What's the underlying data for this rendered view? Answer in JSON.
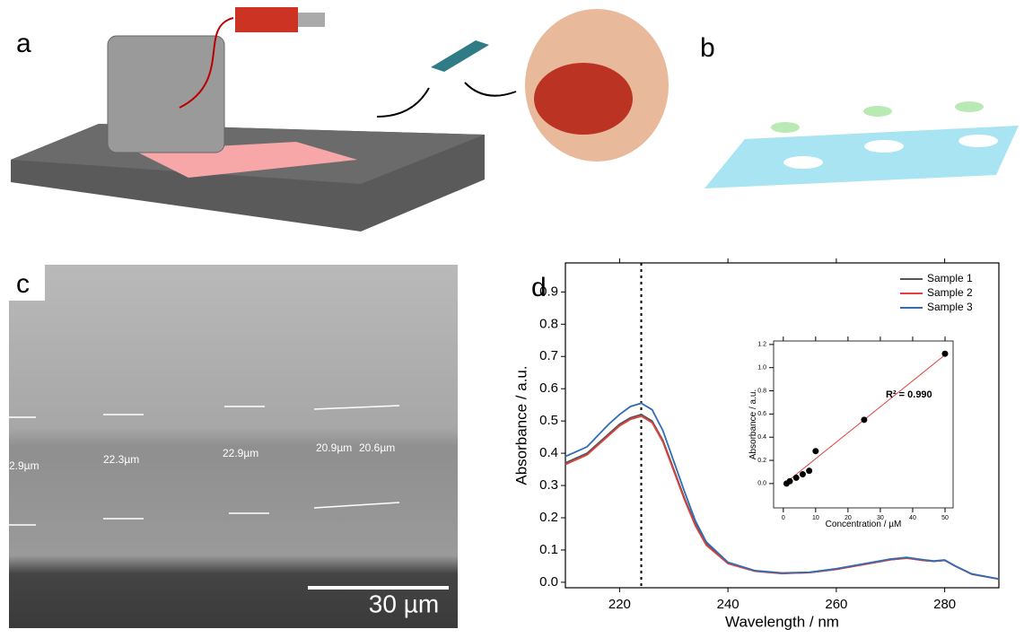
{
  "panels": {
    "a": {
      "label": "a"
    },
    "b": {
      "label": "b"
    },
    "c": {
      "label": "c",
      "scale_bar": "30 µm",
      "measurements": [
        "2.9µm",
        "22.3µm",
        "22.9µm",
        "20.9µm",
        "20.6µm"
      ]
    },
    "d": {
      "label": "d"
    }
  },
  "chart_data": [
    {
      "type": "line",
      "x_label": "Wavelength / nm",
      "y_label": "Absorbance / a.u.",
      "x": [
        210,
        214,
        218,
        220,
        222,
        224,
        226,
        228,
        230,
        232,
        234,
        236,
        240,
        245,
        250,
        255,
        260,
        265,
        270,
        273,
        276,
        278,
        280,
        282,
        285,
        290
      ],
      "series": [
        {
          "name": "Sample 1",
          "color": "#555555",
          "values": [
            0.37,
            0.4,
            0.46,
            0.49,
            0.51,
            0.52,
            0.5,
            0.44,
            0.35,
            0.26,
            0.18,
            0.12,
            0.06,
            0.035,
            0.028,
            0.03,
            0.04,
            0.055,
            0.07,
            0.075,
            0.068,
            0.065,
            0.068,
            0.05,
            0.025,
            0.01
          ]
        },
        {
          "name": "Sample 2",
          "color": "#e0413c",
          "values": [
            0.365,
            0.395,
            0.455,
            0.485,
            0.505,
            0.515,
            0.495,
            0.435,
            0.345,
            0.255,
            0.175,
            0.115,
            0.058,
            0.034,
            0.027,
            0.03,
            0.04,
            0.055,
            0.07,
            0.075,
            0.068,
            0.065,
            0.068,
            0.05,
            0.025,
            0.01
          ]
        },
        {
          "name": "Sample 3",
          "color": "#2f6db5",
          "values": [
            0.39,
            0.42,
            0.49,
            0.52,
            0.545,
            0.555,
            0.535,
            0.47,
            0.375,
            0.28,
            0.19,
            0.125,
            0.062,
            0.036,
            0.029,
            0.031,
            0.042,
            0.057,
            0.072,
            0.077,
            0.07,
            0.066,
            0.069,
            0.05,
            0.026,
            0.01
          ]
        }
      ],
      "xlim": [
        210,
        290
      ],
      "xticks": [
        220,
        240,
        260,
        280
      ],
      "ylim": [
        -0.017,
        0.99
      ],
      "yticks": [
        {
          "value": 0,
          "label": "0.0"
        },
        0.1,
        0.2,
        0.3,
        0.4,
        0.5,
        0.6,
        0.7,
        0.8,
        0.9
      ],
      "vline": 224,
      "legend": "top-right"
    },
    {
      "type": "scatter",
      "x_label": "Concentration / µM",
      "y_label": "Absorbance / a.u.",
      "annotation": "R² = 0.990",
      "x": [
        1,
        2,
        4,
        6,
        8,
        10,
        25,
        50
      ],
      "values": [
        0.0,
        0.02,
        0.05,
        0.08,
        0.11,
        0.28,
        0.55,
        1.12
      ],
      "color": "#000000",
      "fit_line": {
        "x": [
          0,
          50
        ],
        "y": [
          -0.01,
          1.11
        ],
        "color": "#e0413c"
      },
      "xlim": [
        -3,
        52.5
      ],
      "xticks": [
        0,
        10,
        20,
        30,
        40,
        50
      ],
      "ylim": [
        -0.21,
        1.23
      ],
      "yticks": [
        {
          "value": 0,
          "label": "0.0"
        },
        0.2,
        0.4,
        0.6,
        0.8,
        {
          "value": 1,
          "label": "1.0"
        },
        1.2
      ]
    }
  ]
}
